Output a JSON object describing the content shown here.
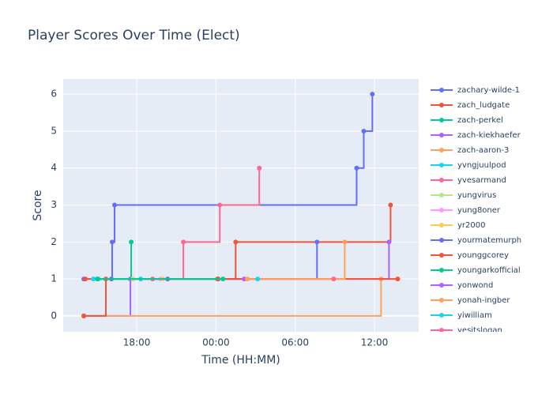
{
  "chart_data": {
    "type": "line",
    "line_shape": "hv",
    "title": "Player Scores Over Time (Elect)",
    "x_label": "Time (HH:MM)",
    "y_label": "Score",
    "xlim": [
      12.43,
      39.35
    ],
    "xticks": [
      {
        "value": 18,
        "label": "18:00"
      },
      {
        "value": 24,
        "label": "00:00"
      },
      {
        "value": 30,
        "label": "06:00"
      },
      {
        "value": 36,
        "label": "12:00"
      }
    ],
    "ylim": [
      -0.43,
      6.41
    ],
    "yticks": [
      0,
      1,
      2,
      3,
      4,
      5,
      6
    ],
    "grid": true,
    "legend": "right",
    "series": [
      {
        "name": "zachary-wilde-1",
        "color": "#636efa",
        "x": [
          13.99,
          16.08,
          16.14,
          16.32,
          34.65,
          35.19,
          35.84
        ],
        "values": [
          1,
          1,
          2,
          3,
          4,
          5,
          6
        ]
      },
      {
        "name": "zach_ludgate",
        "color": "#EF553B",
        "x": [
          14.11,
          24.17,
          25.49,
          37.22
        ],
        "values": [
          1,
          1,
          2,
          3
        ]
      },
      {
        "name": "zach-perkel",
        "color": "#00cc96",
        "x": [
          15.07,
          17.58
        ],
        "values": [
          1,
          2
        ]
      },
      {
        "name": "zach-kiekhaefer",
        "color": "#ab63fa",
        "x": [
          13.99,
          17.52,
          37.1
        ],
        "values": [
          0,
          1,
          2
        ]
      },
      {
        "name": "zach-aaron-3",
        "color": "#FFA15A",
        "x": [
          13.99,
          36.5
        ],
        "values": [
          0,
          1
        ]
      },
      {
        "name": "yvngjuulpod",
        "color": "#19d3f3",
        "x": [
          14.71,
          18.3
        ],
        "values": [
          1,
          1
        ]
      },
      {
        "name": "yvesarmand",
        "color": "#FF6692",
        "x": [
          19.2,
          21.53,
          24.29,
          27.28
        ],
        "values": [
          1,
          2,
          3,
          4
        ]
      },
      {
        "name": "yungvirus",
        "color": "#B6E880",
        "x": [
          17.7
        ],
        "values": [
          1
        ]
      },
      {
        "name": "yung8oner",
        "color": "#FF97FF",
        "x": [
          19.8
        ],
        "values": [
          1
        ]
      },
      {
        "name": "yr2000",
        "color": "#FECB52",
        "x": [
          19.98
        ],
        "values": [
          1
        ]
      },
      {
        "name": "yourmatemurph",
        "color": "#636efa",
        "x": [
          20.34,
          31.65
        ],
        "values": [
          1,
          2
        ]
      },
      {
        "name": "younggcorey",
        "color": "#EF553B",
        "x": [
          13.99,
          15.66,
          24.11,
          37.76
        ],
        "values": [
          0,
          1,
          1,
          1
        ]
      },
      {
        "name": "youngarkofficial",
        "color": "#00cc96",
        "x": [
          15.01,
          24.53
        ],
        "values": [
          1,
          1
        ]
      },
      {
        "name": "yonwond",
        "color": "#ab63fa",
        "x": [
          26.14
        ],
        "values": [
          1
        ]
      },
      {
        "name": "yonah-ingber",
        "color": "#FFA15A",
        "x": [
          26.38,
          33.75
        ],
        "values": [
          1,
          2
        ]
      },
      {
        "name": "yiwilliam",
        "color": "#19d3f3",
        "x": [
          27.16
        ],
        "values": [
          1
        ]
      },
      {
        "name": "yesitslogan",
        "color": "#FF6692",
        "x": [
          32.91
        ],
        "values": [
          1
        ]
      }
    ]
  }
}
